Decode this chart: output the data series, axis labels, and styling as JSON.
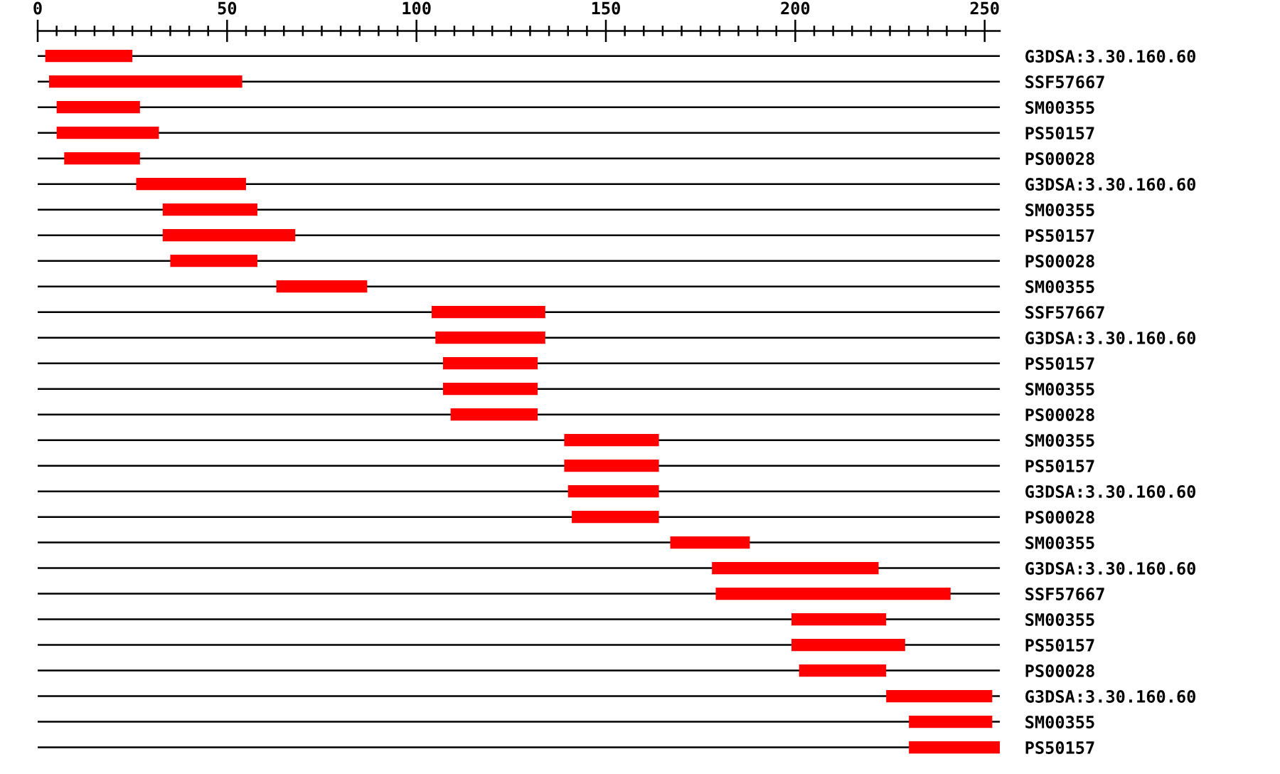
{
  "chart_data": {
    "type": "bar",
    "orientation": "horizontal",
    "categories": [
      "G3DSA:3.30.160.60",
      "SSF57667",
      "SM00355",
      "PS50157",
      "PS00028",
      "G3DSA:3.30.160.60",
      "SM00355",
      "PS50157",
      "PS00028",
      "SM00355",
      "SSF57667",
      "G3DSA:3.30.160.60",
      "PS50157",
      "SM00355",
      "PS00028",
      "SM00355",
      "PS50157",
      "G3DSA:3.30.160.60",
      "PS00028",
      "SM00355",
      "G3DSA:3.30.160.60",
      "SSF57667",
      "SM00355",
      "PS50157",
      "PS00028",
      "G3DSA:3.30.160.60",
      "SM00355",
      "PS50157"
    ],
    "base": [
      2,
      3,
      5,
      5,
      7,
      26,
      33,
      33,
      35,
      63,
      104,
      105,
      107,
      107,
      109,
      139,
      139,
      140,
      141,
      167,
      178,
      179,
      199,
      199,
      201,
      224,
      230,
      230
    ],
    "values": [
      23,
      51,
      22,
      27,
      20,
      29,
      25,
      35,
      23,
      24,
      30,
      29,
      25,
      25,
      23,
      25,
      25,
      24,
      23,
      21,
      44,
      62,
      25,
      30,
      23,
      28,
      22,
      24
    ],
    "color": "#ff0000",
    "xlim": [
      0,
      254
    ],
    "xticks": [
      0,
      {
        "value": 5,
        "label": null
      },
      {
        "value": 10,
        "label": null
      },
      {
        "value": 15,
        "label": null
      },
      {
        "value": 20,
        "label": null
      },
      {
        "value": 25,
        "label": null
      },
      {
        "value": 30,
        "label": null
      },
      {
        "value": 35,
        "label": null
      },
      {
        "value": 40,
        "label": null
      },
      {
        "value": 45,
        "label": null
      },
      50,
      {
        "value": 55,
        "label": null
      },
      {
        "value": 60,
        "label": null
      },
      {
        "value": 65,
        "label": null
      },
      {
        "value": 70,
        "label": null
      },
      {
        "value": 75,
        "label": null
      },
      {
        "value": 80,
        "label": null
      },
      {
        "value": 85,
        "label": null
      },
      {
        "value": 90,
        "label": null
      },
      {
        "value": 95,
        "label": null
      },
      100,
      {
        "value": 105,
        "label": null
      },
      {
        "value": 110,
        "label": null
      },
      {
        "value": 115,
        "label": null
      },
      {
        "value": 120,
        "label": null
      },
      {
        "value": 125,
        "label": null
      },
      {
        "value": 130,
        "label": null
      },
      {
        "value": 135,
        "label": null
      },
      {
        "value": 140,
        "label": null
      },
      {
        "value": 145,
        "label": null
      },
      150,
      {
        "value": 155,
        "label": null
      },
      {
        "value": 160,
        "label": null
      },
      {
        "value": 165,
        "label": null
      },
      {
        "value": 170,
        "label": null
      },
      {
        "value": 175,
        "label": null
      },
      {
        "value": 180,
        "label": null
      },
      {
        "value": 185,
        "label": null
      },
      {
        "value": 190,
        "label": null
      },
      {
        "value": 195,
        "label": null
      },
      200,
      {
        "value": 205,
        "label": null
      },
      {
        "value": 210,
        "label": null
      },
      {
        "value": 215,
        "label": null
      },
      {
        "value": 220,
        "label": null
      },
      {
        "value": 225,
        "label": null
      },
      {
        "value": 230,
        "label": null
      },
      {
        "value": 235,
        "label": null
      },
      {
        "value": 240,
        "label": null
      },
      {
        "value": 245,
        "label": null
      },
      250
    ],
    "grid": "y"
  }
}
